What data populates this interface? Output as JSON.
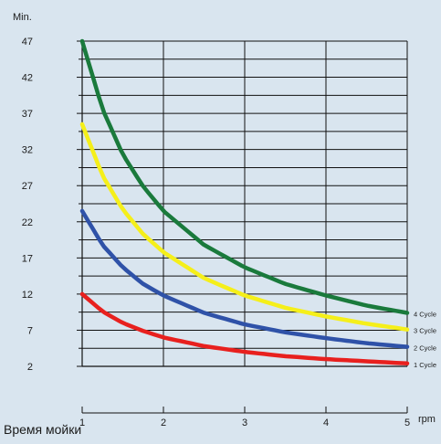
{
  "chart_data": {
    "type": "line",
    "ylabel": "Min.",
    "xlabel": "rpm",
    "caption": "Время мойки",
    "y_ticks": [
      2,
      7,
      12,
      17,
      22,
      27,
      32,
      37,
      42,
      47
    ],
    "x_ticks": [
      1,
      2,
      3,
      4,
      5
    ],
    "ylim": [
      2,
      47
    ],
    "xlim": [
      1,
      5
    ],
    "grid": true,
    "series": [
      {
        "name": "4 Cycle",
        "color": "#1a7a3c",
        "x": [
          1,
          1.25,
          1.5,
          1.75,
          2,
          2.5,
          3,
          3.5,
          4,
          4.5,
          5
        ],
        "y": [
          47,
          37.6,
          31.3,
          26.9,
          23.5,
          18.8,
          15.7,
          13.4,
          11.8,
          10.4,
          9.4
        ]
      },
      {
        "name": "3 Cycle",
        "color": "#f5ef1a",
        "x": [
          1,
          1.25,
          1.5,
          1.75,
          2,
          2.5,
          3,
          3.5,
          4,
          4.5,
          5
        ],
        "y": [
          35.5,
          28.4,
          23.7,
          20.3,
          17.8,
          14.2,
          11.8,
          10.1,
          8.9,
          7.9,
          7.1
        ]
      },
      {
        "name": "2 Cycle",
        "color": "#2f52a8",
        "x": [
          1,
          1.25,
          1.5,
          1.75,
          2,
          2.5,
          3,
          3.5,
          4,
          4.5,
          5
        ],
        "y": [
          23.5,
          18.8,
          15.7,
          13.4,
          11.8,
          9.4,
          7.8,
          6.7,
          5.9,
          5.2,
          4.7
        ]
      },
      {
        "name": "1 Cycle",
        "color": "#e8201e",
        "x": [
          1,
          1.25,
          1.5,
          1.75,
          2,
          2.5,
          3,
          3.5,
          4,
          4.5,
          5
        ],
        "y": [
          12,
          9.6,
          8,
          6.9,
          6,
          4.8,
          4,
          3.4,
          3,
          2.7,
          2.4
        ]
      }
    ]
  }
}
